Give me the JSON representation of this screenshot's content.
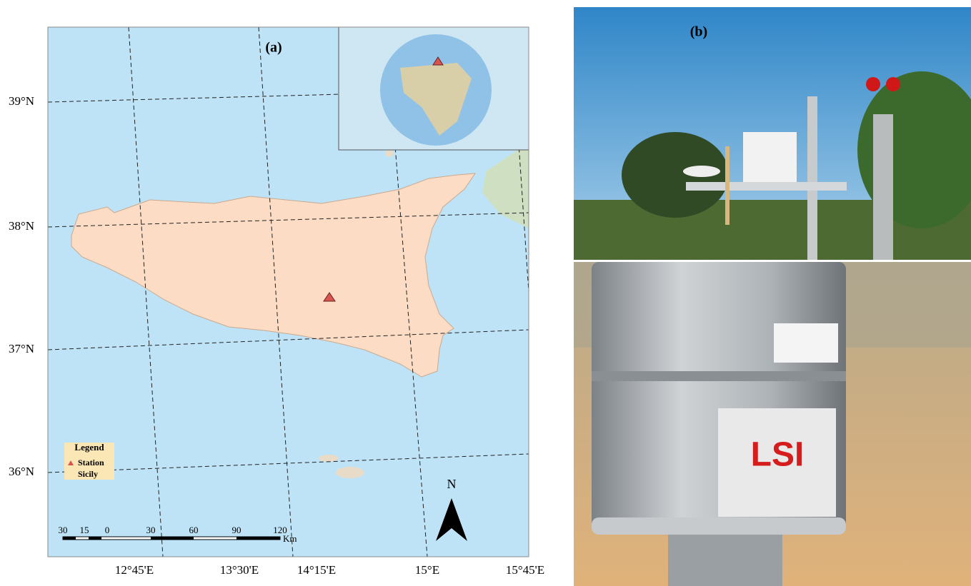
{
  "map": {
    "panel_label": "(a)",
    "lat_labels": [
      "39°N",
      "38°N",
      "37°N",
      "36°N"
    ],
    "lon_labels": [
      "12°45'E",
      "13°30'E",
      "14°15'E",
      "15°E",
      "15°45'E"
    ],
    "legend": {
      "title": "Legend",
      "items": [
        "Station",
        "Sicily"
      ]
    },
    "scale_bar": {
      "labels": [
        "30",
        "15",
        "0",
        "30",
        "60",
        "90",
        "120"
      ],
      "unit": "Km"
    },
    "north_arrow": "N"
  },
  "photo": {
    "panel_label": "(b)",
    "brand": "LSI"
  }
}
